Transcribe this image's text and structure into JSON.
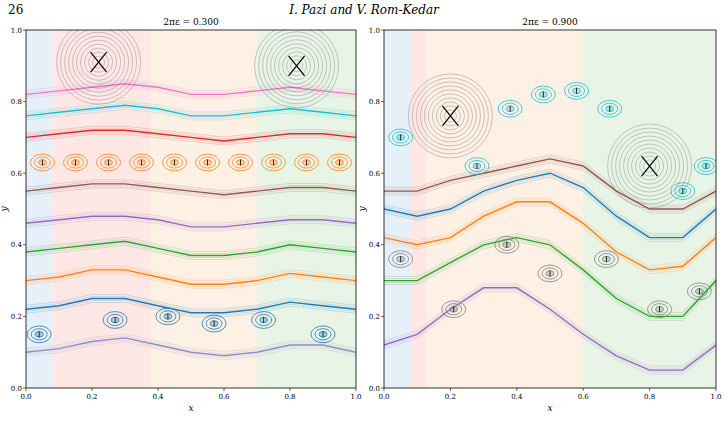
{
  "header": {
    "page": "26",
    "authors": "I. Pazi and V. Rom-Kedar"
  },
  "chart_data": [
    {
      "type": "line",
      "title": "2πε = 0.300",
      "x_label": "x",
      "y_label": "y",
      "xlim": [
        0,
        1
      ],
      "ylim": [
        0,
        1
      ],
      "xticks": [
        {
          "value": 0,
          "label": "0.0"
        },
        {
          "value": 0.2,
          "label": "0.2"
        },
        {
          "value": 0.4,
          "label": "0.4"
        },
        {
          "value": 0.6,
          "label": "0.6"
        },
        {
          "value": 0.8,
          "label": "0.8"
        },
        {
          "value": 1,
          "label": "1.0"
        }
      ],
      "yticks": [
        {
          "value": 0,
          "label": "0.0"
        },
        {
          "value": 0.2,
          "label": "0.2"
        },
        {
          "value": 0.4,
          "label": "0.4"
        },
        {
          "value": 0.6,
          "label": "0.6"
        },
        {
          "value": 0.8,
          "label": "0.8"
        },
        {
          "value": 1,
          "label": "1.0"
        }
      ],
      "regions": [
        {
          "xlim": [
            0,
            0.08
          ],
          "color": "#d6e6f5"
        },
        {
          "xlim": [
            0.08,
            0.38
          ],
          "color": "#fbd9d6"
        },
        {
          "xlim": [
            0.38,
            0.7
          ],
          "color": "#fbe6d2"
        },
        {
          "xlim": [
            0.7,
            1
          ],
          "color": "#d9efd6"
        }
      ],
      "x": [
        0,
        0.1,
        0.2,
        0.3,
        0.4,
        0.5,
        0.6,
        0.7,
        0.8,
        0.9,
        1
      ],
      "series": [
        {
          "color": "#8c8cc0",
          "values": [
            0.1,
            0.11,
            0.13,
            0.14,
            0.12,
            0.1,
            0.09,
            0.1,
            0.12,
            0.12,
            0.1
          ]
        },
        {
          "color": "#1f77b4",
          "values": [
            0.22,
            0.23,
            0.25,
            0.25,
            0.23,
            0.21,
            0.21,
            0.22,
            0.24,
            0.23,
            0.22
          ]
        },
        {
          "color": "#ff7f0e",
          "values": [
            0.3,
            0.31,
            0.33,
            0.33,
            0.31,
            0.29,
            0.29,
            0.3,
            0.32,
            0.31,
            0.3
          ]
        },
        {
          "color": "#2ca02c",
          "values": [
            0.38,
            0.39,
            0.4,
            0.41,
            0.39,
            0.37,
            0.37,
            0.38,
            0.4,
            0.39,
            0.38
          ]
        },
        {
          "color": "#9467bd",
          "values": [
            0.46,
            0.47,
            0.48,
            0.48,
            0.47,
            0.45,
            0.45,
            0.46,
            0.47,
            0.47,
            0.46
          ]
        },
        {
          "color": "#8c564b",
          "values": [
            0.55,
            0.56,
            0.57,
            0.57,
            0.56,
            0.55,
            0.54,
            0.55,
            0.56,
            0.56,
            0.55
          ]
        },
        {
          "color": "#d62728",
          "values": [
            0.7,
            0.71,
            0.72,
            0.72,
            0.71,
            0.7,
            0.69,
            0.7,
            0.71,
            0.71,
            0.7
          ]
        },
        {
          "color": "#17becf",
          "values": [
            0.76,
            0.77,
            0.78,
            0.79,
            0.78,
            0.76,
            0.76,
            0.77,
            0.78,
            0.77,
            0.76
          ]
        },
        {
          "color": "#e377c2",
          "values": [
            0.82,
            0.83,
            0.84,
            0.85,
            0.84,
            0.82,
            0.82,
            0.83,
            0.84,
            0.83,
            0.82
          ]
        },
        {
          "type": "scatter",
          "marker": "island",
          "color": "#ff7f0e",
          "x": [
            0.05,
            0.15,
            0.25,
            0.35,
            0.45,
            0.55,
            0.65,
            0.75,
            0.85,
            0.95
          ],
          "values": [
            0.63,
            0.63,
            0.63,
            0.63,
            0.63,
            0.63,
            0.63,
            0.63,
            0.63,
            0.63
          ]
        },
        {
          "type": "scatter",
          "marker": "island",
          "color": "#1f77b4",
          "x": [
            0.04,
            0.27,
            0.43,
            0.57,
            0.72,
            0.9
          ],
          "values": [
            0.15,
            0.19,
            0.2,
            0.18,
            0.19,
            0.15
          ]
        },
        {
          "type": "scatter",
          "marker": "center",
          "color": "#444444",
          "x": [
            0.22,
            0.82
          ],
          "values": [
            0.91,
            0.9
          ]
        }
      ]
    },
    {
      "type": "line",
      "title": "2πε = 0.900",
      "x_label": "x",
      "y_label": "y",
      "xlim": [
        0,
        1
      ],
      "ylim": [
        0,
        1
      ],
      "xticks": [
        {
          "value": 0,
          "label": "0.0"
        },
        {
          "value": 0.2,
          "label": "0.2"
        },
        {
          "value": 0.4,
          "label": "0.4"
        },
        {
          "value": 0.6,
          "label": "0.6"
        },
        {
          "value": 0.8,
          "label": "0.8"
        },
        {
          "value": 1,
          "label": "1.0"
        }
      ],
      "yticks": [
        {
          "value": 0,
          "label": "0.0"
        },
        {
          "value": 0.2,
          "label": "0.2"
        },
        {
          "value": 0.4,
          "label": "0.4"
        },
        {
          "value": 0.6,
          "label": "0.6"
        },
        {
          "value": 0.8,
          "label": "0.8"
        },
        {
          "value": 1,
          "label": "1.0"
        }
      ],
      "regions": [
        {
          "xlim": [
            0,
            0.08
          ],
          "color": "#d6e6f5"
        },
        {
          "xlim": [
            0.08,
            0.13
          ],
          "color": "#fbd9d6"
        },
        {
          "xlim": [
            0.13,
            0.6
          ],
          "color": "#fbe6d2"
        },
        {
          "xlim": [
            0.6,
            1
          ],
          "color": "#d9efd6"
        }
      ],
      "x": [
        0,
        0.1,
        0.2,
        0.3,
        0.4,
        0.5,
        0.6,
        0.7,
        0.8,
        0.9,
        1
      ],
      "series": [
        {
          "color": "#9467bd",
          "values": [
            0.12,
            0.15,
            0.22,
            0.28,
            0.28,
            0.22,
            0.15,
            0.09,
            0.05,
            0.05,
            0.12
          ]
        },
        {
          "color": "#2ca02c",
          "values": [
            0.3,
            0.3,
            0.35,
            0.4,
            0.42,
            0.4,
            0.33,
            0.25,
            0.2,
            0.2,
            0.3
          ]
        },
        {
          "color": "#ff7f0e",
          "values": [
            0.42,
            0.4,
            0.42,
            0.48,
            0.52,
            0.52,
            0.46,
            0.38,
            0.33,
            0.34,
            0.42
          ]
        },
        {
          "color": "#1f77b4",
          "values": [
            0.5,
            0.48,
            0.5,
            0.55,
            0.58,
            0.6,
            0.56,
            0.48,
            0.42,
            0.42,
            0.5
          ]
        },
        {
          "color": "#8c564b",
          "values": [
            0.55,
            0.55,
            0.58,
            0.6,
            0.62,
            0.64,
            0.62,
            0.55,
            0.5,
            0.5,
            0.55
          ]
        },
        {
          "type": "scatter",
          "marker": "island",
          "color": "#7f7f7f",
          "x": [
            0.05,
            0.21,
            0.37,
            0.5,
            0.67,
            0.83,
            0.95
          ],
          "values": [
            0.36,
            0.22,
            0.4,
            0.32,
            0.36,
            0.22,
            0.27
          ]
        },
        {
          "type": "scatter",
          "marker": "island",
          "color": "#17becf",
          "x": [
            0.05,
            0.28,
            0.38,
            0.48,
            0.58,
            0.68,
            0.9,
            0.97
          ],
          "values": [
            0.7,
            0.62,
            0.78,
            0.82,
            0.83,
            0.78,
            0.55,
            0.62
          ]
        },
        {
          "type": "scatter",
          "marker": "center",
          "color": "#444444",
          "x": [
            0.2,
            0.8
          ],
          "values": [
            0.76,
            0.62
          ]
        }
      ]
    }
  ]
}
